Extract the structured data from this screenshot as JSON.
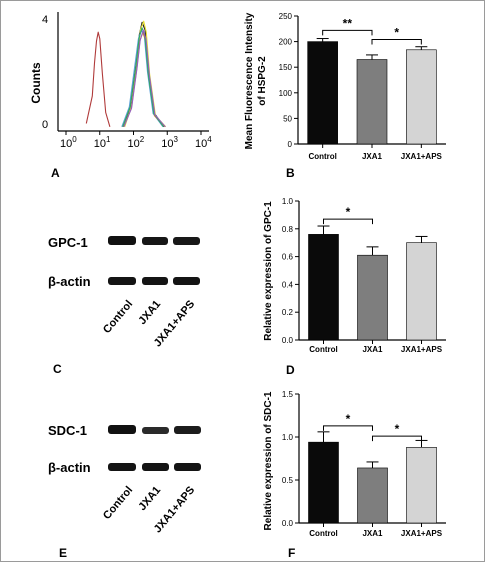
{
  "panels": {
    "A": {
      "letter": "A",
      "ylabel": "Counts",
      "ytick_labels": [
        "4",
        "0"
      ],
      "xtick_mantissa": "10",
      "xtick_exponents": [
        "0",
        "1",
        "2",
        "3",
        "4"
      ],
      "curve_colors": [
        "#b03a3a",
        "#1a1a1a",
        "#e8e030",
        "#5aa0d8",
        "#e07840",
        "#30a860",
        "#9060c0"
      ]
    },
    "C": {
      "letter": "C",
      "bands": [
        {
          "label": "GPC-1"
        },
        {
          "label": "β-actin"
        }
      ],
      "lanes": [
        "Control",
        "JXA1",
        "JXA1+APS"
      ]
    },
    "E": {
      "letter": "E",
      "bands": [
        {
          "label": "SDC-1"
        },
        {
          "label": "β-actin"
        }
      ],
      "lanes": [
        "Control",
        "JXA1",
        "JXA1+APS"
      ]
    }
  },
  "chart_data": [
    {
      "panel": "A",
      "type": "line",
      "ylabel": "Counts",
      "xscale": "log",
      "xlim": [
        1,
        10000
      ],
      "xticks": [
        "10^0",
        "10^1",
        "10^2",
        "10^3",
        "10^4"
      ],
      "series": [
        {
          "color": "#b03a3a",
          "x": [
            4,
            6,
            7,
            8,
            9,
            10,
            12,
            15,
            20
          ],
          "y": [
            0.05,
            0.3,
            0.6,
            0.8,
            0.88,
            0.82,
            0.5,
            0.15,
            0.02
          ]
        },
        {
          "color": "#1a1a1a",
          "x": [
            50,
            80,
            120,
            150,
            180,
            220,
            280,
            400,
            800
          ],
          "y": [
            0.02,
            0.2,
            0.6,
            0.86,
            0.97,
            0.9,
            0.55,
            0.15,
            0.02
          ]
        },
        {
          "color": "#e8e030",
          "x": [
            55,
            90,
            130,
            160,
            200,
            240,
            300,
            450,
            900
          ],
          "y": [
            0.02,
            0.22,
            0.65,
            0.9,
            0.98,
            0.88,
            0.5,
            0.12,
            0.02
          ]
        },
        {
          "color": "#5aa0d8",
          "x": [
            45,
            75,
            110,
            140,
            170,
            210,
            260,
            380,
            750
          ],
          "y": [
            0.02,
            0.2,
            0.58,
            0.82,
            0.9,
            0.84,
            0.52,
            0.14,
            0.02
          ]
        },
        {
          "color": "#e07840",
          "x": [
            50,
            85,
            125,
            155,
            190,
            230,
            290,
            420,
            850
          ],
          "y": [
            0.02,
            0.18,
            0.55,
            0.8,
            0.88,
            0.8,
            0.48,
            0.12,
            0.02
          ]
        },
        {
          "color": "#30a860",
          "x": [
            48,
            80,
            118,
            148,
            178,
            218,
            275,
            400,
            780
          ],
          "y": [
            0.02,
            0.2,
            0.57,
            0.83,
            0.92,
            0.85,
            0.5,
            0.14,
            0.02
          ]
        },
        {
          "color": "#9060c0",
          "x": [
            52,
            88,
            128,
            158,
            195,
            235,
            295,
            430,
            880
          ],
          "y": [
            0.02,
            0.19,
            0.56,
            0.81,
            0.9,
            0.82,
            0.49,
            0.13,
            0.02
          ]
        }
      ]
    },
    {
      "panel": "B",
      "letter": "B",
      "type": "bar",
      "ylabel": [
        "Mean Fluorescence Intensity",
        "of HSPG-2"
      ],
      "categories": [
        "Control",
        "JXA1",
        "JXA1+APS"
      ],
      "values": [
        200,
        165,
        184
      ],
      "errors": [
        6,
        9,
        6
      ],
      "colors": [
        "#0a0a0a",
        "#7e7e7e",
        "#d4d4d4"
      ],
      "ylim": [
        0,
        250
      ],
      "yticks": [
        "0",
        "50",
        "100",
        "150",
        "200",
        "250"
      ],
      "significance": [
        {
          "from": 0,
          "to": 1,
          "label": "**",
          "level": 222
        },
        {
          "from": 1,
          "to": 2,
          "label": "*",
          "level": 204
        }
      ]
    },
    {
      "panel": "D",
      "letter": "D",
      "type": "bar",
      "ylabel": [
        "Relative expression of GPC-1"
      ],
      "categories": [
        "Control",
        "JXA1",
        "JXA1+APS"
      ],
      "values": [
        0.76,
        0.61,
        0.7
      ],
      "errors": [
        0.06,
        0.06,
        0.045
      ],
      "colors": [
        "#0a0a0a",
        "#7e7e7e",
        "#d4d4d4"
      ],
      "ylim": [
        0,
        1.0
      ],
      "yticks": [
        "0.0",
        "0.2",
        "0.4",
        "0.6",
        "0.8",
        "1.0"
      ],
      "significance": [
        {
          "from": 0,
          "to": 1,
          "label": "*",
          "level": 0.87
        }
      ]
    },
    {
      "panel": "F",
      "letter": "F",
      "type": "bar",
      "ylabel": [
        "Relative expression of SDC-1"
      ],
      "categories": [
        "Control",
        "JXA1",
        "JXA1+APS"
      ],
      "values": [
        0.94,
        0.64,
        0.88
      ],
      "errors": [
        0.12,
        0.07,
        0.08
      ],
      "colors": [
        "#0a0a0a",
        "#7e7e7e",
        "#d4d4d4"
      ],
      "ylim": [
        0,
        1.5
      ],
      "yticks": [
        "0.0",
        "0.5",
        "1.0",
        "1.5"
      ],
      "significance": [
        {
          "from": 0,
          "to": 1,
          "label": "*",
          "level": 1.13
        },
        {
          "from": 1,
          "to": 2,
          "label": "*",
          "level": 1.01
        }
      ]
    }
  ]
}
